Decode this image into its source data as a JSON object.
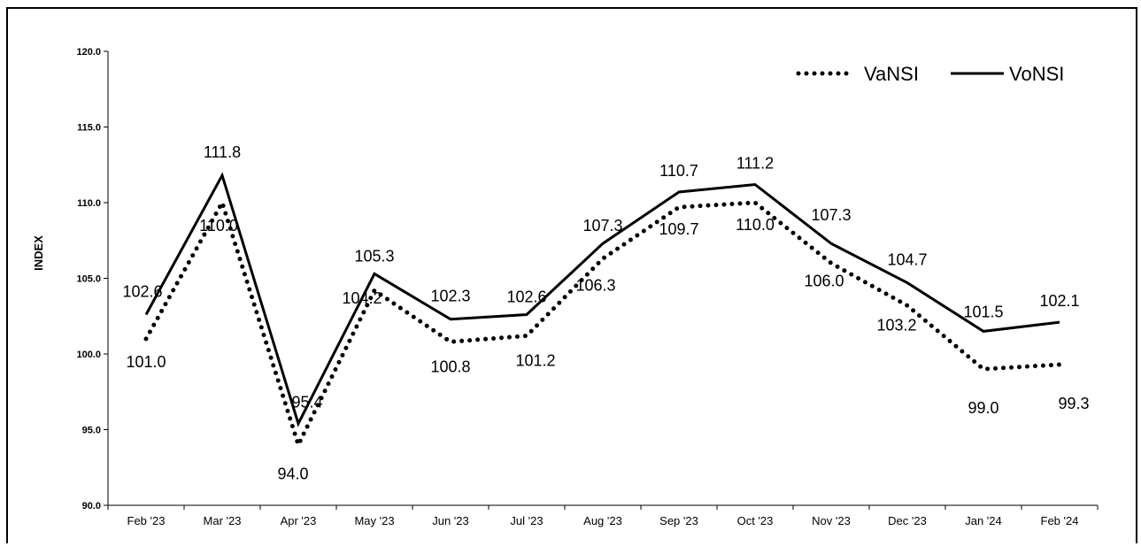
{
  "chart_data": {
    "type": "line",
    "title": "",
    "xlabel": "",
    "ylabel": "INDEX",
    "ylim": [
      90,
      120
    ],
    "yticks": [
      "90.0",
      "95.0",
      "100.0",
      "105.0",
      "110.0",
      "115.0",
      "120.0"
    ],
    "grid": false,
    "legend_position": "top-right",
    "categories": [
      "Feb '23",
      "Mar '23",
      "Apr '23",
      "May '23",
      "Jun '23",
      "Jul '23",
      "Aug '23",
      "Sep '23",
      "Oct '23",
      "Nov '23",
      "Dec '23",
      "Jan '24",
      "Feb '24"
    ],
    "series": [
      {
        "name": "VaNSI",
        "style": "dotted",
        "color": "#000000",
        "values": [
          101.0,
          110.0,
          94.0,
          104.2,
          100.8,
          101.2,
          106.3,
          109.7,
          110.0,
          106.0,
          103.2,
          99.0,
          99.3
        ],
        "labels": [
          "101.0",
          "110.0",
          "94.0",
          "104.2",
          "100.8",
          "101.2",
          "106.3",
          "109.7",
          "110.0",
          "106.0",
          "103.2",
          "99.0",
          "99.3"
        ]
      },
      {
        "name": "VoNSI",
        "style": "solid",
        "color": "#000000",
        "values": [
          102.6,
          111.8,
          95.4,
          105.3,
          102.3,
          102.6,
          107.3,
          110.7,
          111.2,
          107.3,
          104.7,
          101.5,
          102.1
        ],
        "labels": [
          "102.6",
          "111.8",
          "95.4",
          "105.3",
          "102.3",
          "102.6",
          "107.3",
          "110.7",
          "111.2",
          "107.3",
          "104.7",
          "101.5",
          "102.1"
        ]
      }
    ]
  }
}
